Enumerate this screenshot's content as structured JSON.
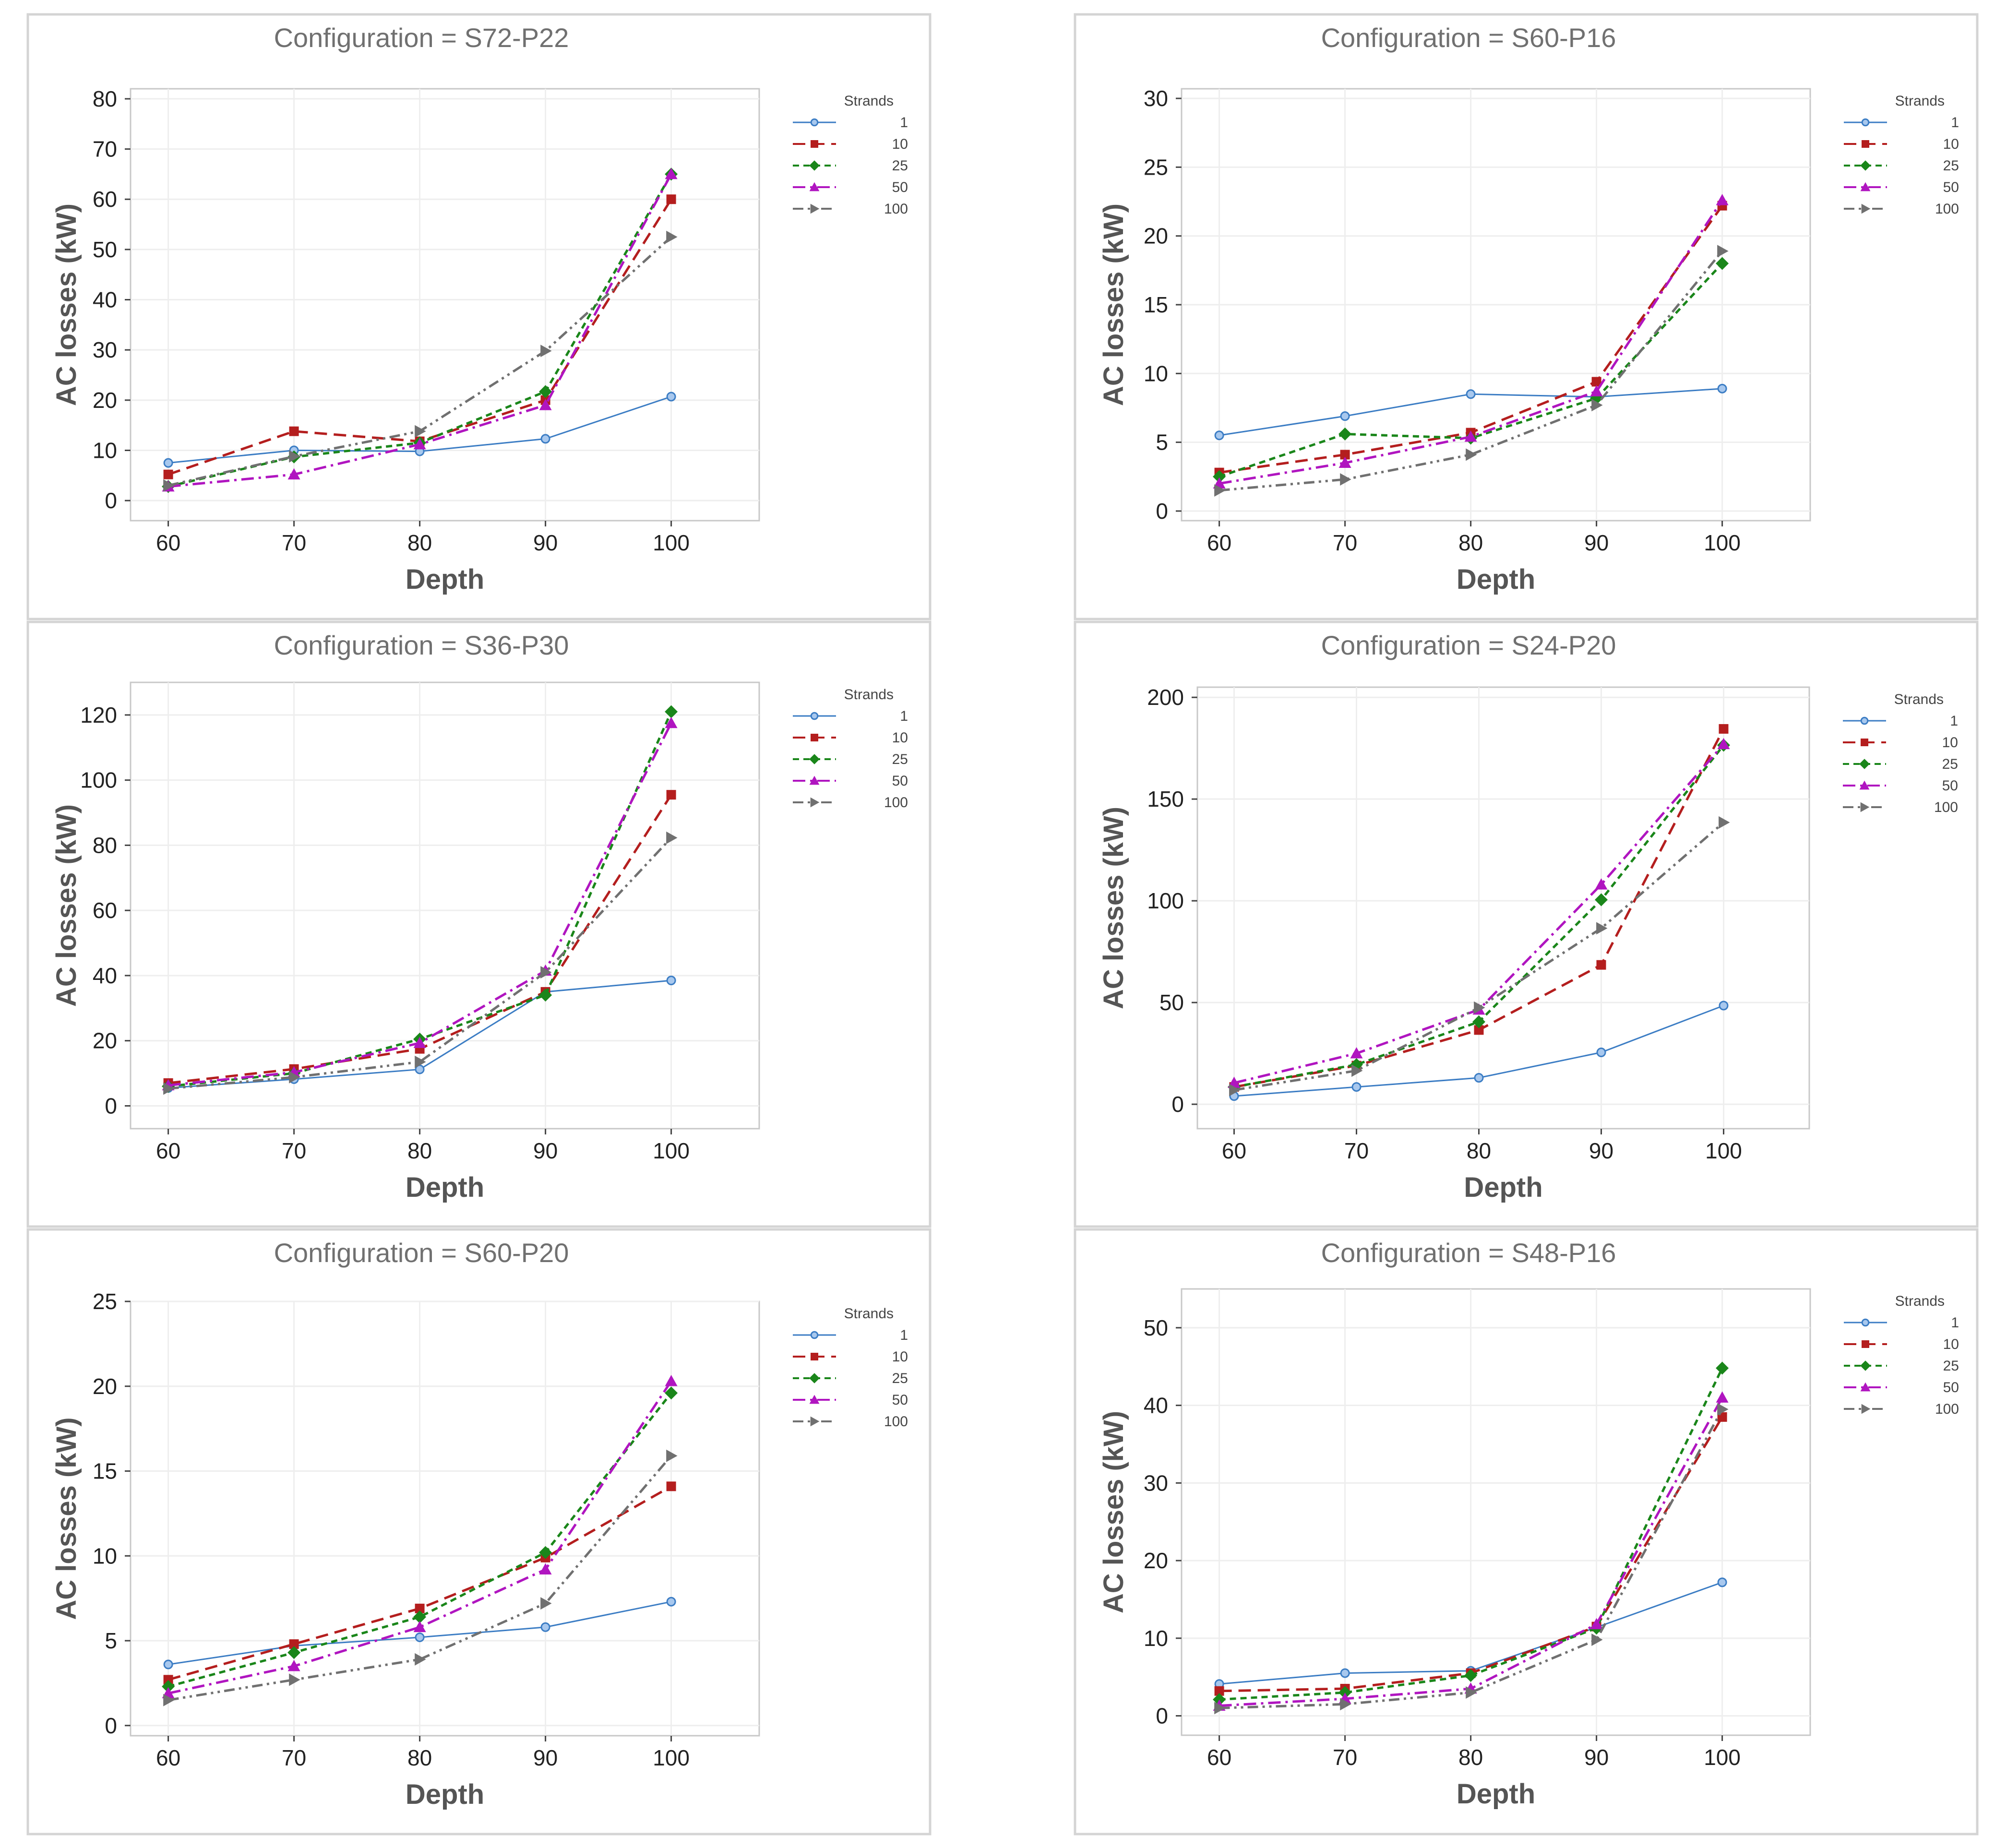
{
  "chart_data": [
    {
      "type": "line",
      "title": "Configuration = S72-P22",
      "xlabel": "Depth",
      "ylabel": "AC losses (kW)",
      "x": [
        60,
        70,
        80,
        90,
        100
      ],
      "xlim": [
        57,
        107
      ],
      "ylim": [
        -4,
        82
      ],
      "yticks": [
        0,
        10,
        20,
        30,
        40,
        50,
        60,
        70,
        80
      ],
      "grid": true,
      "legend_title": "Strands",
      "legend_position": "right",
      "series": [
        {
          "name": "1",
          "values": [
            7.5,
            10,
            9.8,
            12.3,
            20.7
          ]
        },
        {
          "name": "10",
          "values": [
            5.2,
            13.8,
            11.8,
            20,
            60
          ]
        },
        {
          "name": "25",
          "values": [
            2.8,
            8.7,
            11.5,
            21.7,
            65
          ]
        },
        {
          "name": "50",
          "values": [
            2.8,
            5.2,
            11.2,
            19,
            65
          ]
        },
        {
          "name": "100",
          "values": [
            3,
            8.8,
            13.8,
            29.8,
            52.5
          ]
        }
      ]
    },
    {
      "type": "line",
      "title": "Configuration = S60-P16",
      "xlabel": "Depth",
      "ylabel": "AC losses (kW)",
      "x": [
        60,
        70,
        80,
        90,
        100
      ],
      "xlim": [
        57,
        107
      ],
      "ylim": [
        -0.7,
        30.7
      ],
      "yticks": [
        0,
        5,
        10,
        15,
        20,
        25,
        30
      ],
      "grid": true,
      "legend_title": "Strands",
      "legend_position": "right",
      "series": [
        {
          "name": "1",
          "values": [
            5.5,
            6.9,
            8.5,
            8.3,
            8.9
          ]
        },
        {
          "name": "10",
          "values": [
            2.8,
            4.1,
            5.7,
            9.4,
            22.2
          ]
        },
        {
          "name": "25",
          "values": [
            2.5,
            5.6,
            5.3,
            8.2,
            18
          ]
        },
        {
          "name": "50",
          "values": [
            2,
            3.5,
            5.4,
            8.7,
            22.6
          ]
        },
        {
          "name": "100",
          "values": [
            1.5,
            2.3,
            4.1,
            7.7,
            18.9
          ]
        }
      ]
    },
    {
      "type": "line",
      "title": "Configuration = S36-P30",
      "xlabel": "Depth",
      "ylabel": "AC losses (kW)",
      "x": [
        60,
        70,
        80,
        90,
        100
      ],
      "xlim": [
        57,
        107
      ],
      "ylim": [
        -7,
        130
      ],
      "yticks": [
        0,
        20,
        40,
        60,
        80,
        100,
        120
      ],
      "grid": true,
      "legend_title": "Strands",
      "legend_position": "right",
      "series": [
        {
          "name": "1",
          "values": [
            5.5,
            8.2,
            11.2,
            35,
            38.5
          ]
        },
        {
          "name": "10",
          "values": [
            7,
            11.3,
            17.5,
            35,
            95.5
          ]
        },
        {
          "name": "25",
          "values": [
            6,
            10,
            20.5,
            34,
            121
          ]
        },
        {
          "name": "50",
          "values": [
            6.3,
            10.3,
            19.3,
            41.5,
            117.5
          ]
        },
        {
          "name": "100",
          "values": [
            5.3,
            8.8,
            13.5,
            41,
            82.3
          ]
        }
      ]
    },
    {
      "type": "line",
      "title": "Configuration = S24-P20",
      "xlabel": "Depth",
      "ylabel": "AC losses (kW)",
      "x": [
        60,
        70,
        80,
        90,
        100
      ],
      "xlim": [
        57,
        107
      ],
      "ylim": [
        -12,
        205
      ],
      "yticks": [
        0,
        50,
        100,
        150,
        200
      ],
      "grid": true,
      "legend_title": "Strands",
      "legend_position": "right",
      "series": [
        {
          "name": "1",
          "values": [
            4,
            8.5,
            13,
            25.5,
            48.5
          ]
        },
        {
          "name": "10",
          "values": [
            8.5,
            19,
            36.5,
            68.5,
            184.5
          ]
        },
        {
          "name": "25",
          "values": [
            8.5,
            19.5,
            40.5,
            100.5,
            176.5
          ]
        },
        {
          "name": "50",
          "values": [
            10.5,
            25,
            46.5,
            108,
            177
          ]
        },
        {
          "name": "100",
          "values": [
            7,
            16.5,
            47.5,
            86.5,
            138.5
          ]
        }
      ]
    },
    {
      "type": "line",
      "title": "Configuration = S60-P20",
      "xlabel": "Depth",
      "ylabel": "AC losses (kW)",
      "x": [
        60,
        70,
        80,
        90,
        100
      ],
      "xlim": [
        57,
        107
      ],
      "ylim": [
        -0.6,
        25
      ],
      "yticks": [
        0,
        5,
        10,
        15,
        20,
        25
      ],
      "grid": true,
      "legend_title": "Strands",
      "legend_position": "right",
      "series": [
        {
          "name": "1",
          "values": [
            3.6,
            4.7,
            5.2,
            5.8,
            7.3
          ]
        },
        {
          "name": "10",
          "values": [
            2.7,
            4.8,
            6.9,
            9.9,
            14.1
          ]
        },
        {
          "name": "25",
          "values": [
            2.3,
            4.3,
            6.4,
            10.2,
            19.6
          ]
        },
        {
          "name": "50",
          "values": [
            1.9,
            3.5,
            5.8,
            9.2,
            20.3
          ]
        },
        {
          "name": "100",
          "values": [
            1.5,
            2.7,
            3.9,
            7.2,
            15.9
          ]
        }
      ]
    },
    {
      "type": "line",
      "title": "Configuration = S48-P16",
      "xlabel": "Depth",
      "ylabel": "AC losses (kW)",
      "x": [
        60,
        70,
        80,
        90,
        100
      ],
      "xlim": [
        57,
        107
      ],
      "ylim": [
        -2.5,
        55
      ],
      "yticks": [
        0,
        10,
        20,
        30,
        40,
        50
      ],
      "grid": true,
      "legend_title": "Strands",
      "legend_position": "right",
      "series": [
        {
          "name": "1",
          "values": [
            4.1,
            5.5,
            5.8,
            11.4,
            17.2
          ]
        },
        {
          "name": "10",
          "values": [
            3.2,
            3.5,
            5.5,
            11.5,
            38.5
          ]
        },
        {
          "name": "25",
          "values": [
            2.1,
            3,
            5.2,
            11.3,
            44.8
          ]
        },
        {
          "name": "50",
          "values": [
            1.3,
            2.2,
            3.5,
            11.8,
            41
          ]
        },
        {
          "name": "100",
          "values": [
            1,
            1.5,
            3,
            9.8,
            39.5
          ]
        }
      ]
    }
  ],
  "series_styles": [
    {
      "name": "1",
      "color": "#3c7dc4",
      "marker": "circle",
      "dash": ""
    },
    {
      "name": "10",
      "color": "#b41e1e",
      "marker": "square",
      "dash": "long-dash"
    },
    {
      "name": "25",
      "color": "#1a861a",
      "marker": "diamond",
      "dash": "short-dash"
    },
    {
      "name": "50",
      "color": "#b015c0",
      "marker": "triangle-up",
      "dash": "dash-dot"
    },
    {
      "name": "100",
      "color": "#707070",
      "marker": "triangle-right",
      "dash": "dash-dot-dot"
    }
  ]
}
